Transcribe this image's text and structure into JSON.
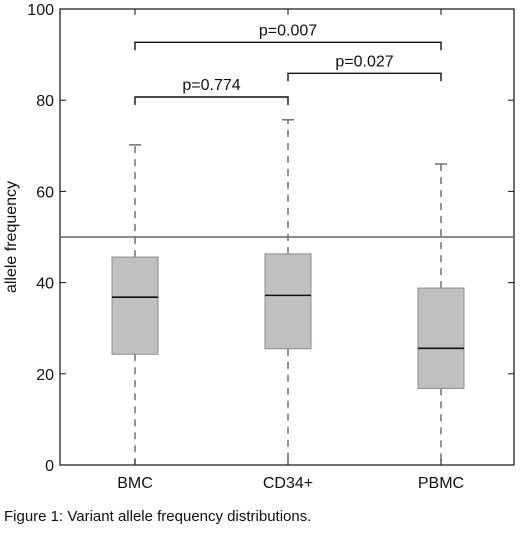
{
  "chart_data": {
    "type": "box",
    "ylabel": "allele frequency",
    "ylim": [
      0,
      100
    ],
    "yticks": [
      "0",
      "20",
      "40",
      "60",
      "80",
      "100"
    ],
    "categories": [
      "BMC",
      "CD34+",
      "PBMC"
    ],
    "boxes": [
      {
        "category": "BMC",
        "whisker_low": 0,
        "q1": 24.3,
        "median": 36.8,
        "q3": 45.6,
        "whisker_high": 70.2
      },
      {
        "category": "CD34+",
        "whisker_low": 0,
        "q1": 25.5,
        "median": 37.2,
        "q3": 46.3,
        "whisker_high": 75.7
      },
      {
        "category": "PBMC",
        "whisker_low": 0,
        "q1": 16.8,
        "median": 25.6,
        "q3": 38.8,
        "whisker_high": 66.0
      }
    ],
    "reference_line": 50,
    "significance": [
      {
        "from": "BMC",
        "to": "CD34+",
        "label": "p=0.774",
        "y": 80.7
      },
      {
        "from": "CD34+",
        "to": "PBMC",
        "label": "p=0.027",
        "y": 85.9
      },
      {
        "from": "BMC",
        "to": "PBMC",
        "label": "p=0.007",
        "y": 92.7
      }
    ],
    "colors": {
      "box_fill": "#c2c0bf",
      "box_stroke": "#8a8a8a",
      "median": "#111111",
      "whisker": "#666666",
      "reference": "#666666",
      "bracket": "#111111"
    }
  },
  "caption": "Figure 1: Variant allele frequency distributions."
}
